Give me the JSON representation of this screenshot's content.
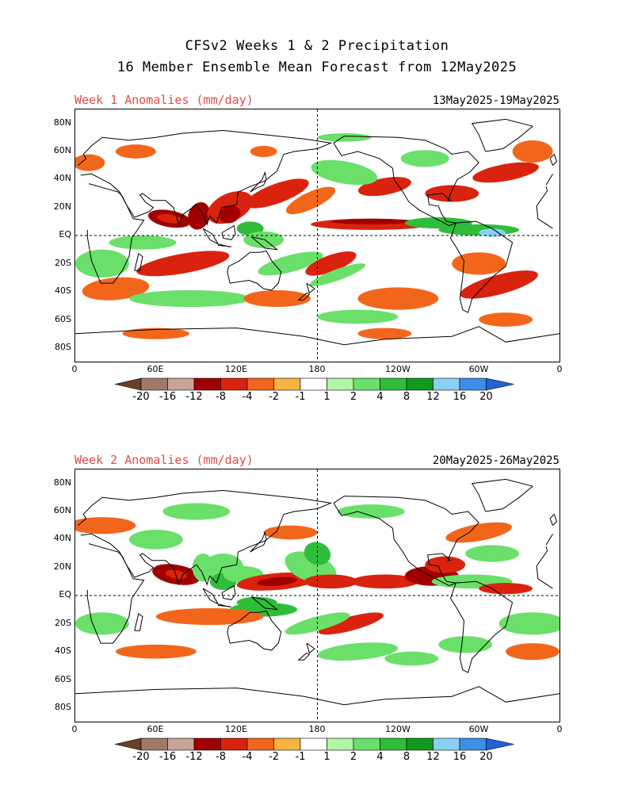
{
  "title": {
    "line1": "CFSv2 Weeks 1 & 2 Precipitation",
    "line2": "16 Member Ensemble Mean Forecast from 12May2025"
  },
  "panels": [
    {
      "label": "Week 1 Anomalies (mm/day)",
      "dates": "13May2025-19May2025"
    },
    {
      "label": "Week 2 Anomalies (mm/day)",
      "dates": "20May2025-26May2025"
    }
  ],
  "lat_ticks": [
    "80N",
    "60N",
    "40N",
    "20N",
    "EQ",
    "20S",
    "40S",
    "60S",
    "80S"
  ],
  "lon_ticks": [
    "0",
    "60E",
    "120E",
    "180",
    "120W",
    "60W",
    "0"
  ],
  "colorbar": {
    "labels": [
      "-20",
      "-16",
      "-12",
      "-8",
      "-4",
      "-2",
      "-1",
      "1",
      "2",
      "4",
      "8",
      "12",
      "16",
      "20"
    ],
    "colors": [
      "#6b3e27",
      "#a17868",
      "#c9a49a",
      "#a10000",
      "#d9230e",
      "#f2661c",
      "#f9b33e",
      "#ffffff",
      "#b2f5a6",
      "#6ae06a",
      "#2fbd3a",
      "#119a1d",
      "#8ccff4",
      "#3b8fe6",
      "#1f64d8"
    ]
  }
}
